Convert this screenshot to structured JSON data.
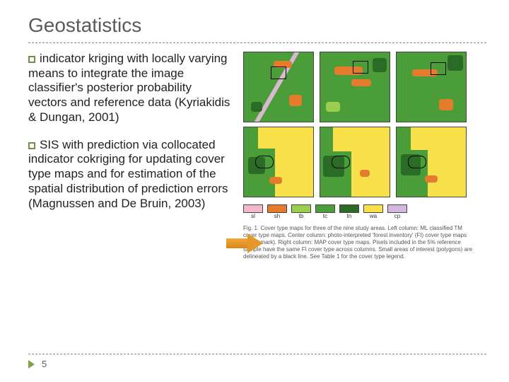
{
  "title": "Geostatistics",
  "bullets": [
    {
      "head": "indicator",
      "rest": " kriging with locally varying means to integrate the image classifier's posterior probability vectors and reference data (Kyriakidis & Dungan, 2001)"
    },
    {
      "head": "SIS",
      "rest": " with prediction via collocated indicator cokriging for updating cover type maps and for estimation of the spatial distribution of prediction errors (Magnussen and De Bruin, 2003)"
    }
  ],
  "legend": {
    "items": [
      {
        "code": "sl",
        "color": "#f2b7c9"
      },
      {
        "code": "sh",
        "color": "#e57b2c"
      },
      {
        "code": "tb",
        "color": "#9ccf4e"
      },
      {
        "code": "tc",
        "color": "#4b9d3a"
      },
      {
        "code": "tn",
        "color": "#2a6b25"
      },
      {
        "code": "wa",
        "color": "#f7e04a"
      },
      {
        "code": "cp",
        "color": "#d5b8e0"
      }
    ]
  },
  "caption": "Fig. 1. Cover type maps for three of the nine study areas. Left column: ML classified TM cover type maps. Center column: photo-interpreted 'forest inventory' (FI) cover type maps (benchmark). Right column: MAP cover type maps. Pixels included in the 5% reference sample have the same FI cover type across columns. Small areas of interest (polygons) are delineated by a black line. See Table 1 for the cover type legend.",
  "colors": {
    "title_color": "#5a5a5a",
    "box_border": "#70904a",
    "arrow_fill": "#e5972a",
    "footer_tri": "#7aa34a",
    "map_colors": {
      "base_green": "#4b9d3a",
      "yellow": "#f7e04a",
      "orange": "#e57b2c",
      "dark_green": "#2a6b25",
      "light_green": "#9ccf4e",
      "pink": "#d9b8d0"
    }
  },
  "page_number": "5",
  "layout": {
    "slide_w": 720,
    "slide_h": 540,
    "title_fontsize": 28,
    "bullet_fontsize": 17,
    "caption_fontsize": 8
  }
}
